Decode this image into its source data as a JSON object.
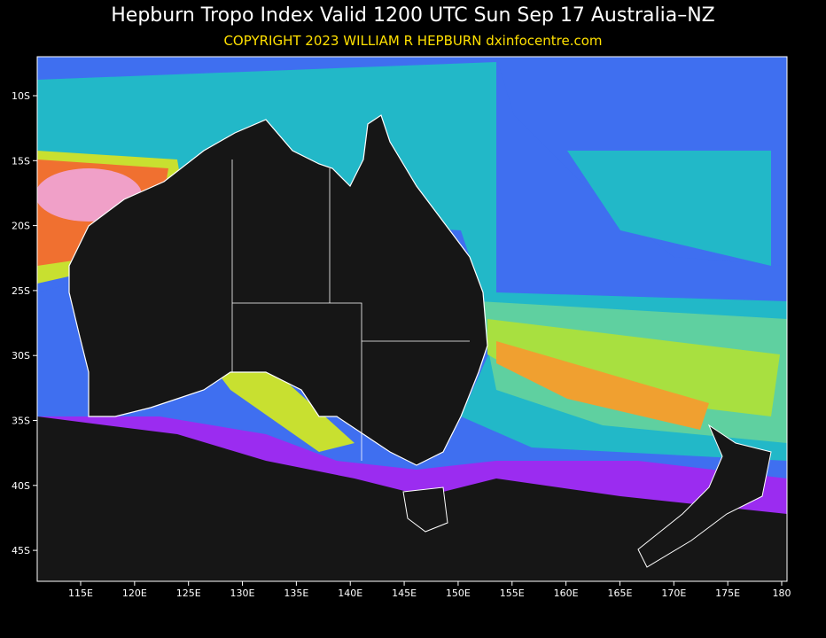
{
  "header": {
    "title": "Hepburn Tropo Index Valid 1200 UTC Sun Sep 17 Australia–NZ",
    "subtitle": "COPYRIGHT 2023  WILLIAM R HEPBURN  dxinfocentre.com"
  },
  "axes": {
    "lon_labels": [
      "115E",
      "120E",
      "125E",
      "130E",
      "135E",
      "140E",
      "145E",
      "150E",
      "155E",
      "160E",
      "165E",
      "170E",
      "175E",
      "180"
    ],
    "lat_labels": [
      "10S",
      "15S",
      "20S",
      "25S",
      "30S",
      "35S",
      "40S",
      "45S"
    ]
  }
}
